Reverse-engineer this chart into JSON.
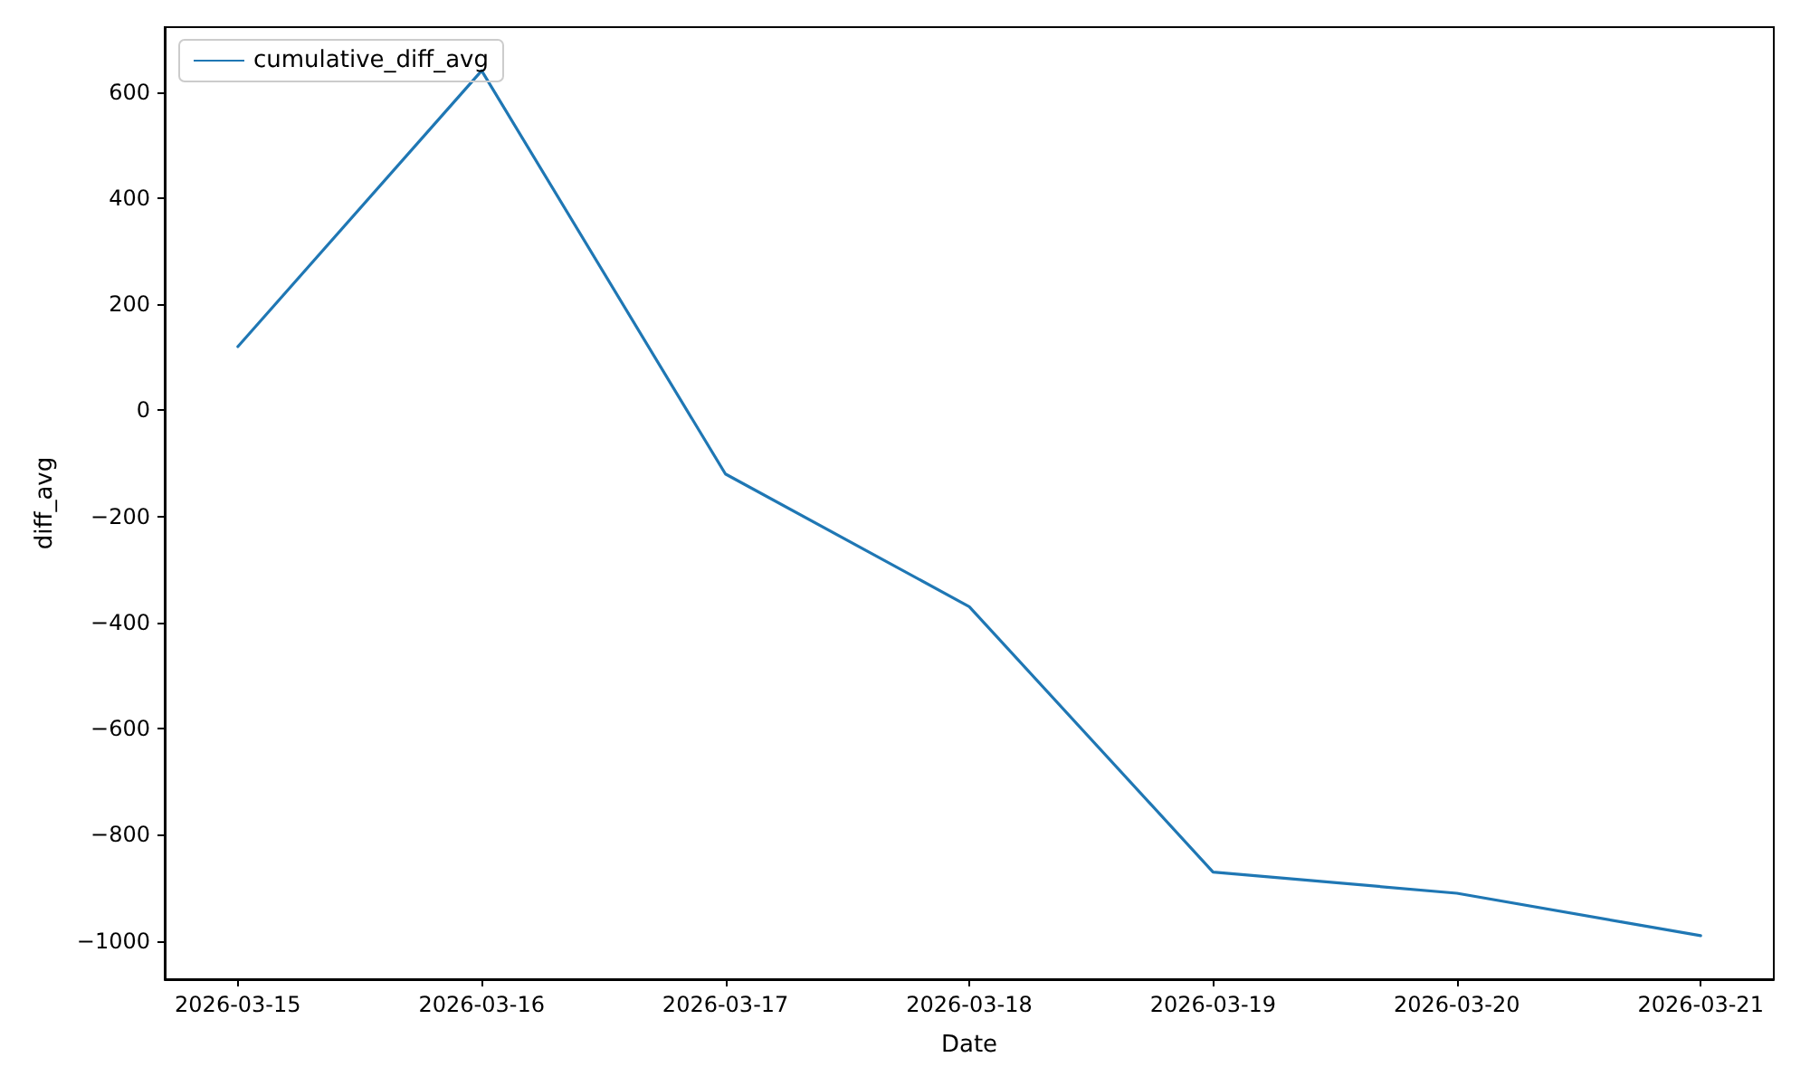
{
  "chart_data": {
    "type": "line",
    "xlabel": "Date",
    "ylabel": "diff_avg",
    "x": [
      "2026-03-15",
      "2026-03-16",
      "2026-03-17",
      "2026-03-18",
      "2026-03-19",
      "2026-03-20",
      "2026-03-21"
    ],
    "series": [
      {
        "name": "cumulative_diff_avg",
        "color": "#1f77b4",
        "values": [
          120,
          640,
          -120,
          -370,
          -870,
          -910,
          -990
        ]
      }
    ],
    "xlim": [
      "2026-03-14T16:48",
      "2026-03-21T07:12"
    ],
    "xticks": [
      "2026-03-15",
      "2026-03-16",
      "2026-03-17",
      "2026-03-18",
      "2026-03-19",
      "2026-03-20",
      "2026-03-21"
    ],
    "ylim": [
      -1072,
      722
    ],
    "yticks": [
      -1000,
      -800,
      -600,
      -400,
      -200,
      0,
      200,
      400,
      600
    ],
    "grid": false,
    "legend": "top left",
    "marker": "none",
    "line_style": "solid"
  }
}
